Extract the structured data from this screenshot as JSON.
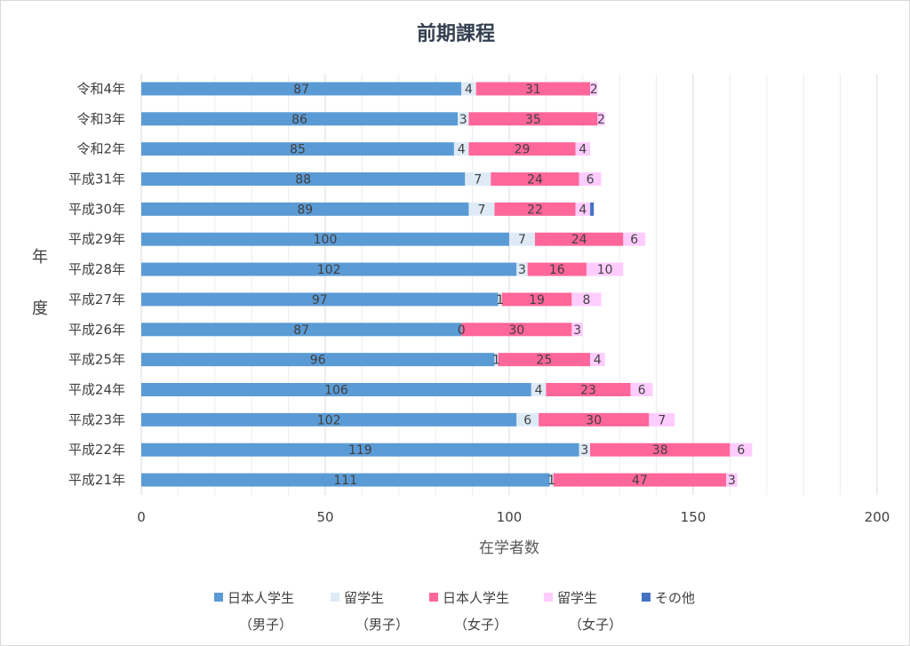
{
  "chart_data": {
    "type": "bar",
    "orientation": "horizontal",
    "stacked": true,
    "title": "前期課程",
    "xlabel": "在学者数",
    "ylabel": "年度",
    "xlim": [
      0,
      200
    ],
    "xticks": [
      0,
      50,
      100,
      150,
      200
    ],
    "grid": true,
    "legend_position": "bottom",
    "categories": [
      "令和4年",
      "令和3年",
      "令和2年",
      "平成31年",
      "平成30年",
      "平成29年",
      "平成28年",
      "平成27年",
      "平成26年",
      "平成25年",
      "平成24年",
      "平成23年",
      "平成22年",
      "平成21年"
    ],
    "series": [
      {
        "name": "日本人学生",
        "sub": "（男子）",
        "color": "#5b9bd5",
        "values": [
          87,
          86,
          85,
          88,
          89,
          100,
          102,
          97,
          87,
          96,
          106,
          102,
          119,
          111
        ]
      },
      {
        "name": "留学生",
        "sub": "（男子）",
        "color": "#deebf7",
        "values": [
          4,
          3,
          4,
          7,
          7,
          7,
          3,
          1,
          0,
          1,
          4,
          6,
          3,
          1
        ]
      },
      {
        "name": "日本人学生",
        "sub": "（女子）",
        "color": "#ff6699",
        "values": [
          31,
          35,
          29,
          24,
          22,
          24,
          16,
          19,
          30,
          25,
          23,
          30,
          38,
          47
        ]
      },
      {
        "name": "留学生",
        "sub": "（女子）",
        "color": "#ffccff",
        "values": [
          2,
          2,
          4,
          6,
          4,
          6,
          10,
          8,
          3,
          4,
          6,
          7,
          6,
          3
        ]
      },
      {
        "name": "その他",
        "sub": "",
        "color": "#4472c4",
        "values": [
          0,
          0,
          0,
          0,
          1,
          0,
          0,
          0,
          0,
          0,
          0,
          0,
          0,
          0
        ]
      }
    ]
  }
}
